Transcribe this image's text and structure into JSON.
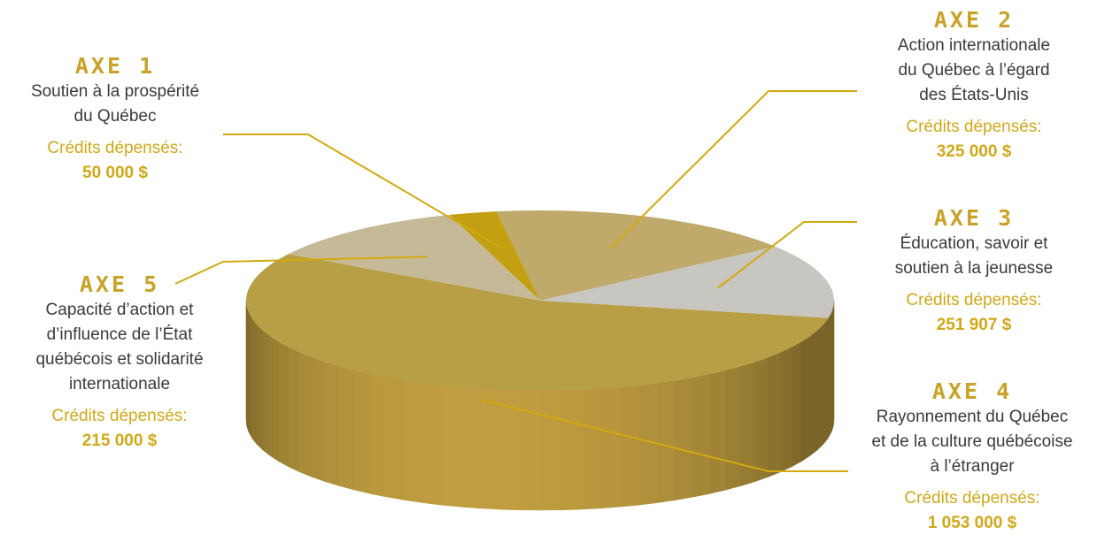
{
  "chart_data": {
    "type": "pie",
    "categories": [
      "AXE 1",
      "AXE 2",
      "AXE 3",
      "AXE 4",
      "AXE 5"
    ],
    "values": [
      50000,
      325000,
      251907,
      1053000,
      215000
    ],
    "colors": [
      "#c2a012",
      "#c0aa6b",
      "#c8c6c0",
      "#b89f45",
      "#c5b998"
    ],
    "rim_color": "#9c8034"
  },
  "axes": [
    {
      "title": "AXE 1",
      "desc": [
        "Soutien à la prospérité",
        "du Québec"
      ],
      "credits_label": "Crédits dépensés:",
      "credits_value": "50 000 $"
    },
    {
      "title": "AXE 2",
      "desc": [
        "Action internationale",
        "du Québec à l’égard",
        "des États-Unis"
      ],
      "credits_label": "Crédits dépensés:",
      "credits_value": "325 000 $"
    },
    {
      "title": "AXE 3",
      "desc": [
        "Éducation, savoir et",
        "soutien à la jeunesse"
      ],
      "credits_label": "Crédits dépensés:",
      "credits_value": "251 907 $"
    },
    {
      "title": "AXE 4",
      "desc": [
        "Rayonnement du Québec",
        "et de la culture québécoise",
        "à l’étranger"
      ],
      "credits_label": "Crédits dépensés:",
      "credits_value": "1 053 000 $"
    },
    {
      "title": "AXE 5",
      "desc": [
        "Capacité d’action et",
        "d’influence de l’État",
        "québécois et solidarité",
        "internationale"
      ],
      "credits_label": "Crédits dépensés:",
      "credits_value": "215 000 $"
    }
  ]
}
